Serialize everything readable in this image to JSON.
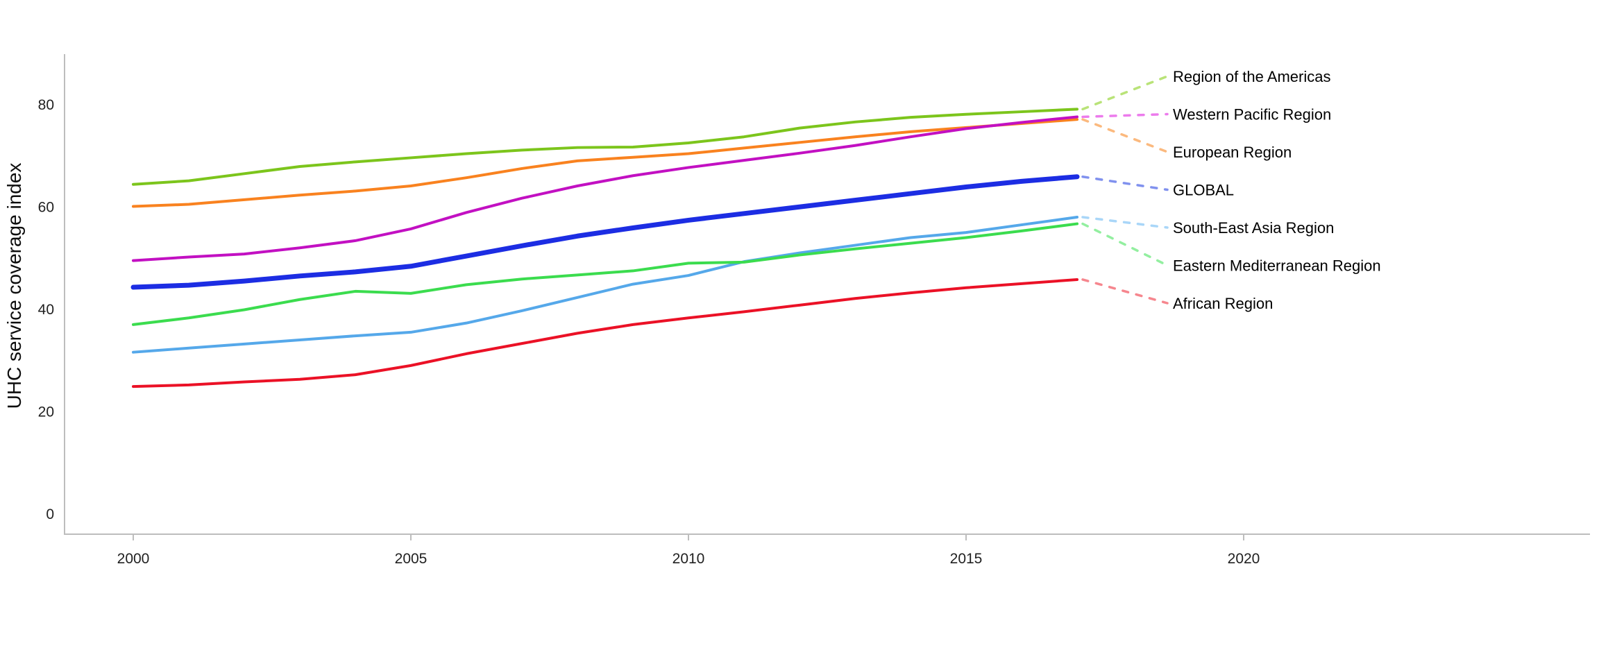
{
  "page": {
    "background": "#ffffff"
  },
  "chart_data": {
    "type": "line",
    "title": "",
    "xlabel": "",
    "ylabel": "UHC service coverage index",
    "grid": false,
    "legend_position": "right-edge-annotations-with-dashed-leaders",
    "axis_color": "#BDBDBD",
    "text_color": "#212121",
    "xlim": [
      1998.8,
      2024.2
    ],
    "ylim": [
      0,
      90
    ],
    "x_ticks": [
      2000,
      2005,
      2010,
      2015,
      2020
    ],
    "y_ticks": [
      0,
      20,
      40,
      60,
      80
    ],
    "x": [
      2000,
      2001,
      2002,
      2003,
      2004,
      2005,
      2006,
      2007,
      2008,
      2009,
      2010,
      2011,
      2012,
      2013,
      2014,
      2015,
      2016,
      2017
    ],
    "series": [
      {
        "name": "Region of the Americas",
        "color": "#7CC51C",
        "leader_color": "#B9E378",
        "line_width": 4,
        "values": [
          64.3,
          65.0,
          66.4,
          67.8,
          68.7,
          69.5,
          70.3,
          71.0,
          71.5,
          71.6,
          72.4,
          73.6,
          75.3,
          76.5,
          77.4,
          78.0,
          78.5,
          79.0
        ]
      },
      {
        "name": "Western Pacific Region",
        "color": "#C210C2",
        "leader_color": "#EC7BEC",
        "line_width": 4,
        "values": [
          49.4,
          50.1,
          50.7,
          51.9,
          53.3,
          55.6,
          58.8,
          61.6,
          64.0,
          66.0,
          67.6,
          69.0,
          70.4,
          71.9,
          73.6,
          75.2,
          76.4,
          77.5
        ]
      },
      {
        "name": "European Region",
        "color": "#F9821F",
        "leader_color": "#FBB97E",
        "line_width": 4,
        "values": [
          60.0,
          60.4,
          61.3,
          62.2,
          63.0,
          64.0,
          65.6,
          67.4,
          68.9,
          69.6,
          70.3,
          71.4,
          72.5,
          73.6,
          74.6,
          75.4,
          76.2,
          77.0
        ]
      },
      {
        "name": "GLOBAL",
        "color": "#1C2DE3",
        "leader_color": "#8091EE",
        "line_width": 7,
        "values": [
          44.2,
          44.6,
          45.4,
          46.4,
          47.2,
          48.3,
          50.3,
          52.3,
          54.2,
          55.8,
          57.3,
          58.6,
          59.9,
          61.2,
          62.5,
          63.8,
          64.9,
          65.8
        ]
      },
      {
        "name": "South-East Asia Region",
        "color": "#55A8EA",
        "leader_color": "#A9D6F8",
        "line_width": 4,
        "values": [
          31.5,
          32.3,
          33.1,
          33.9,
          34.7,
          35.4,
          37.2,
          39.6,
          42.2,
          44.8,
          46.5,
          49.2,
          50.9,
          52.4,
          53.9,
          54.9,
          56.4,
          57.9
        ]
      },
      {
        "name": "Eastern Mediterranean Region",
        "color": "#3BDC4E",
        "leader_color": "#93EFA0",
        "line_width": 4,
        "values": [
          36.9,
          38.2,
          39.8,
          41.8,
          43.4,
          43.0,
          44.7,
          45.8,
          46.6,
          47.4,
          48.9,
          49.1,
          50.5,
          51.7,
          52.8,
          53.9,
          55.2,
          56.6
        ]
      },
      {
        "name": "African Region",
        "color": "#EB1126",
        "leader_color": "#F6868E",
        "line_width": 4,
        "values": [
          24.8,
          25.1,
          25.7,
          26.2,
          27.1,
          28.9,
          31.2,
          33.2,
          35.2,
          36.9,
          38.2,
          39.4,
          40.7,
          42.0,
          43.1,
          44.1,
          44.9,
          45.7
        ]
      }
    ]
  }
}
